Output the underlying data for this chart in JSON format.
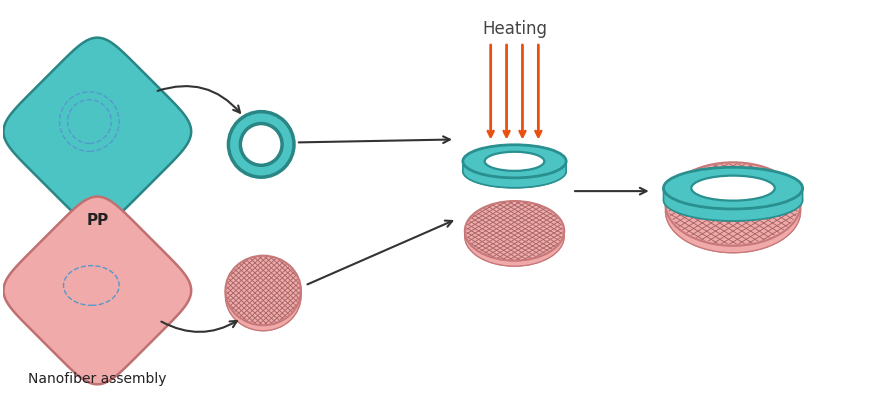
{
  "teal": "#4DC4C4",
  "teal_dark": "#2A8F8F",
  "teal_border": "#2A8585",
  "pink": "#F0AAAA",
  "pink_dark": "#C87878",
  "pink_border": "#C07070",
  "dashed_blue": "#5599CC",
  "arrow_dark": "#333333",
  "arrow_orange": "#E85010",
  "grid_color": "#A06060",
  "heating_text_color": "#444444",
  "label_color": "#222222",
  "bg_color": "#FFFFFF",
  "title_text": "Heating",
  "label_pp": "PP",
  "label_nano": "Nanofiber assembly"
}
